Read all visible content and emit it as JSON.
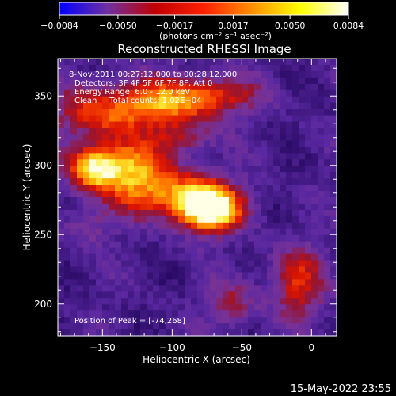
{
  "chart_data": {
    "type": "heatmap",
    "title": "Reconstructed RHESSI Image",
    "xlabel": "Heliocentric X (arcsec)",
    "ylabel": "Heliocentric Y (arcsec)",
    "xlim": [
      -182,
      18
    ],
    "ylim": [
      177,
      377
    ],
    "x_ticks": [
      -150,
      -100,
      -50,
      0
    ],
    "x_tick_labels": [
      "−150",
      "−100",
      "−50",
      "0"
    ],
    "y_ticks": [
      200,
      250,
      300,
      350
    ],
    "y_tick_labels": [
      "200",
      "250",
      "300",
      "350"
    ],
    "colorbar": {
      "range": [
        -0.0084,
        0.0084
      ],
      "ticks": [
        -0.0084,
        -0.005,
        -0.0017,
        0.0017,
        0.005,
        0.0084
      ],
      "tick_labels": [
        "−0.0084",
        "−0.0050",
        "−0.0017",
        "0.0017",
        "0.0050",
        "0.0084"
      ],
      "unit_label": "(photons cm⁻² s⁻¹ asec⁻²)",
      "colors": [
        "#0000ff",
        "#7030a0",
        "#c00000",
        "#ff2000",
        "#ff9000",
        "#ffff00",
        "#ffffff"
      ]
    },
    "annotations": [
      "8-Nov-2011 00:27:12.000 to 00:28:12.000",
      "Detectors: 3F 4F 5F 6F 7F 8F, Att 0",
      "Energy Range: 6.0 - 12.0 keV",
      "Clean     Total counts: 1.02E+04"
    ],
    "peak_label": "Position of Peak = [-74,268]",
    "peak": [
      -74,
      268
    ],
    "blobs": [
      {
        "x": -74,
        "y": 268,
        "sx": 16,
        "sy": 11,
        "a": 1.0
      },
      {
        "x": -105,
        "y": 280,
        "sx": 30,
        "sy": 12,
        "a": 0.55
      },
      {
        "x": -135,
        "y": 300,
        "sx": 22,
        "sy": 12,
        "a": 0.62
      },
      {
        "x": -158,
        "y": 298,
        "sx": 12,
        "sy": 10,
        "a": 0.5
      },
      {
        "x": -150,
        "y": 338,
        "sx": 24,
        "sy": 14,
        "a": 0.5
      },
      {
        "x": -105,
        "y": 345,
        "sx": 22,
        "sy": 12,
        "a": 0.5
      },
      {
        "x": -70,
        "y": 350,
        "sx": 22,
        "sy": 10,
        "a": 0.42
      },
      {
        "x": -10,
        "y": 215,
        "sx": 14,
        "sy": 18,
        "a": 0.42
      },
      {
        "x": -58,
        "y": 200,
        "sx": 12,
        "sy": 12,
        "a": 0.3
      },
      {
        "x": -160,
        "y": 255,
        "sx": 12,
        "sy": 10,
        "a": 0.2
      },
      {
        "x": -95,
        "y": 320,
        "sx": 15,
        "sy": 8,
        "a": 0.3
      }
    ]
  },
  "timestamp": "15-May-2022 23:55"
}
